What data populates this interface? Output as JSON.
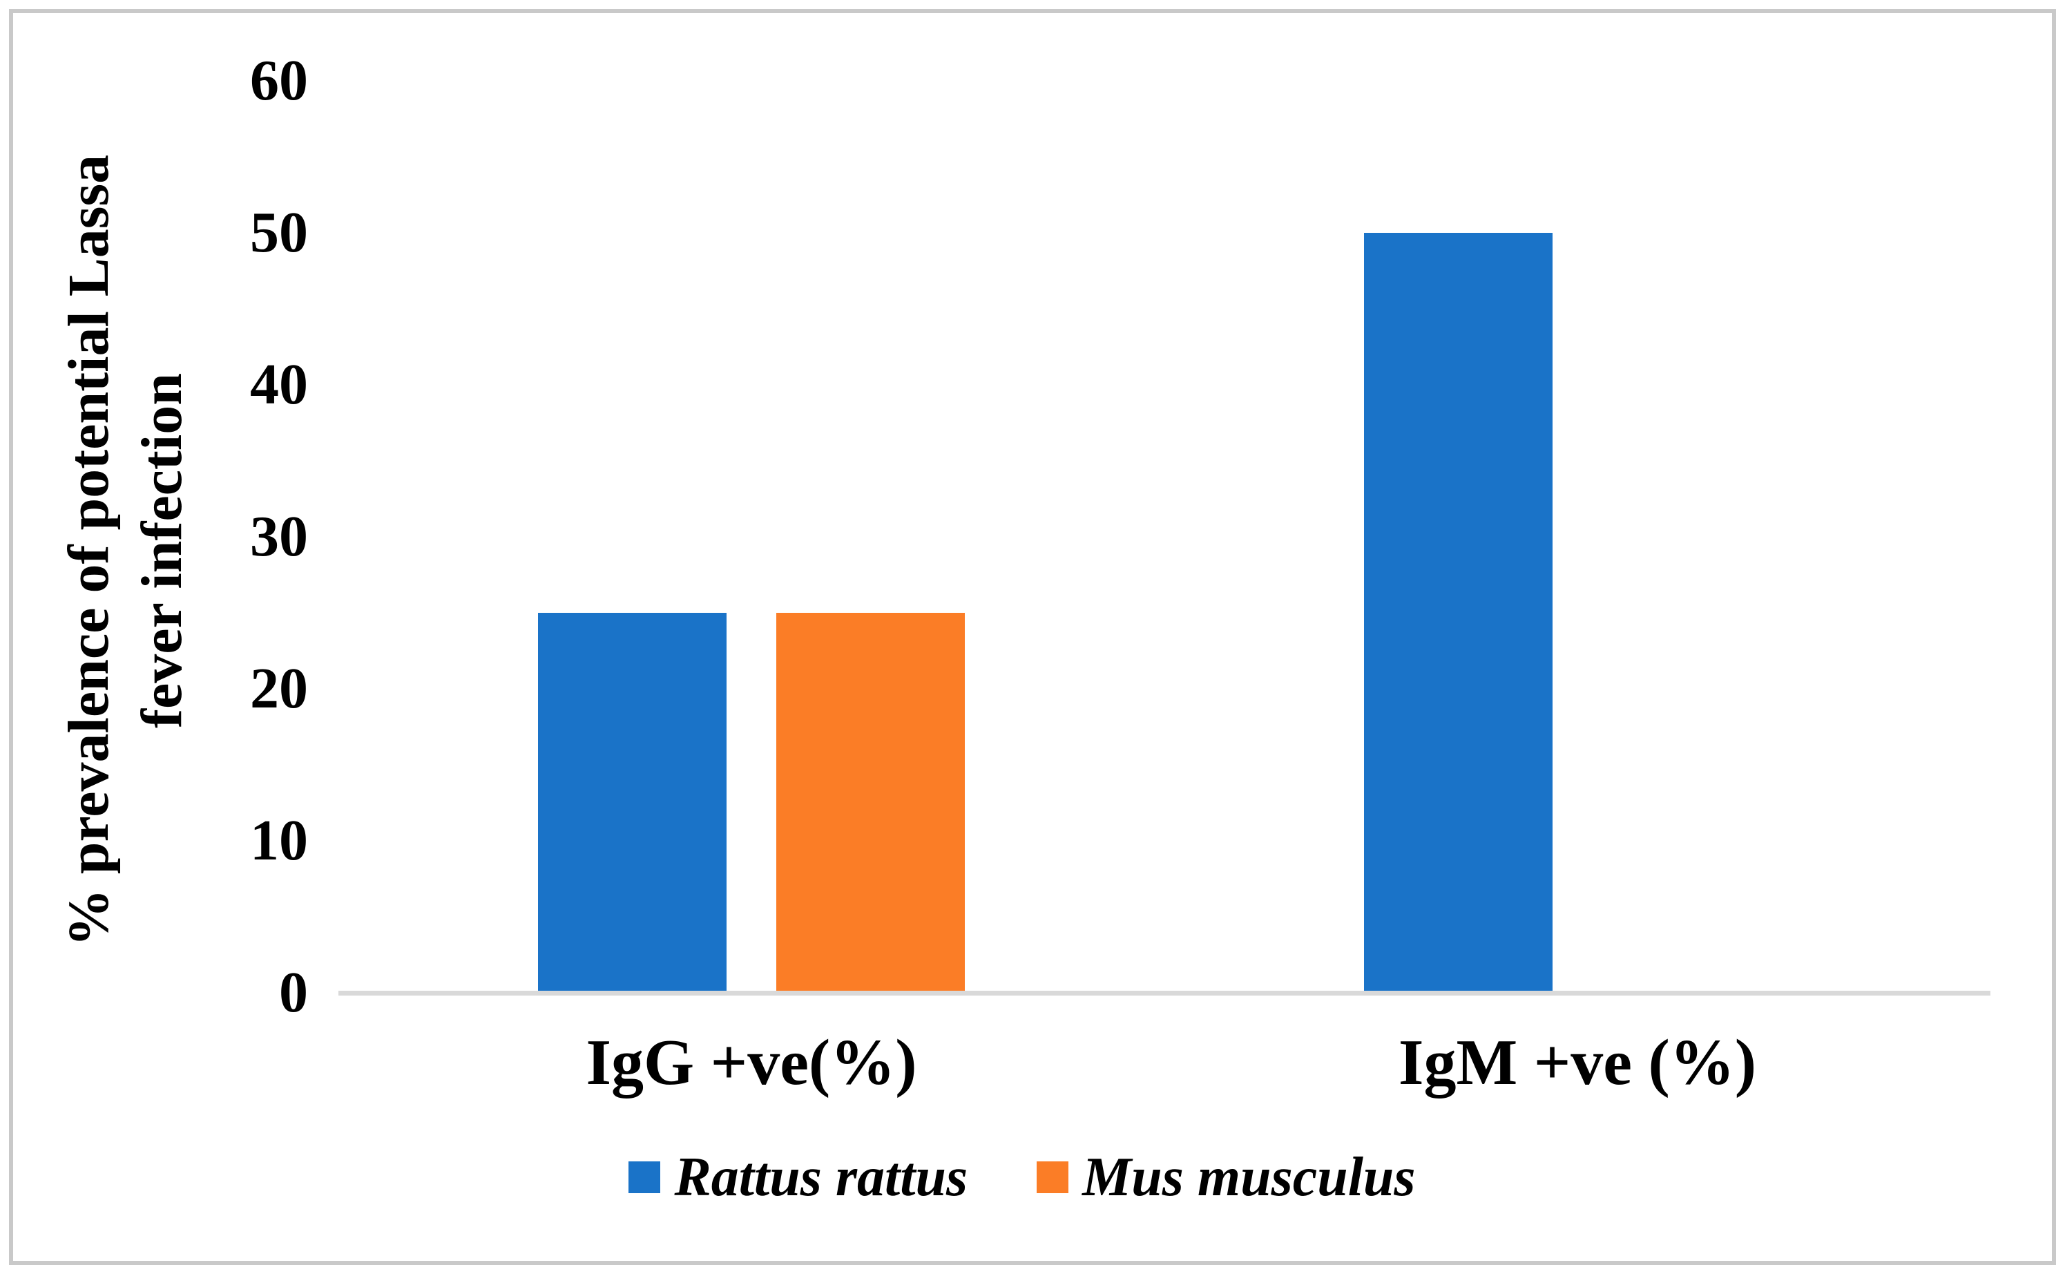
{
  "chart_data": {
    "type": "bar",
    "title": "",
    "categories": [
      "IgG +ve(%)",
      "IgM +ve (%)"
    ],
    "series": [
      {
        "name": "Rattus rattus",
        "color": "#1a73c8",
        "values": [
          25,
          50
        ]
      },
      {
        "name": "Mus musculus",
        "color": "#fb7d26",
        "values": [
          25,
          0
        ]
      }
    ],
    "ylabel_line1": "% prevalence of potential Lassa",
    "ylabel_line2": "fever infection",
    "ylim": [
      0,
      60
    ],
    "yticks": [
      0,
      10,
      20,
      30,
      40,
      50,
      60
    ],
    "grid": false,
    "legend_position": "bottom"
  },
  "colors": {
    "axis_line": "#d9d9d9",
    "chart_border": "#c9c9c9",
    "text": "#000000",
    "background": "#ffffff"
  }
}
